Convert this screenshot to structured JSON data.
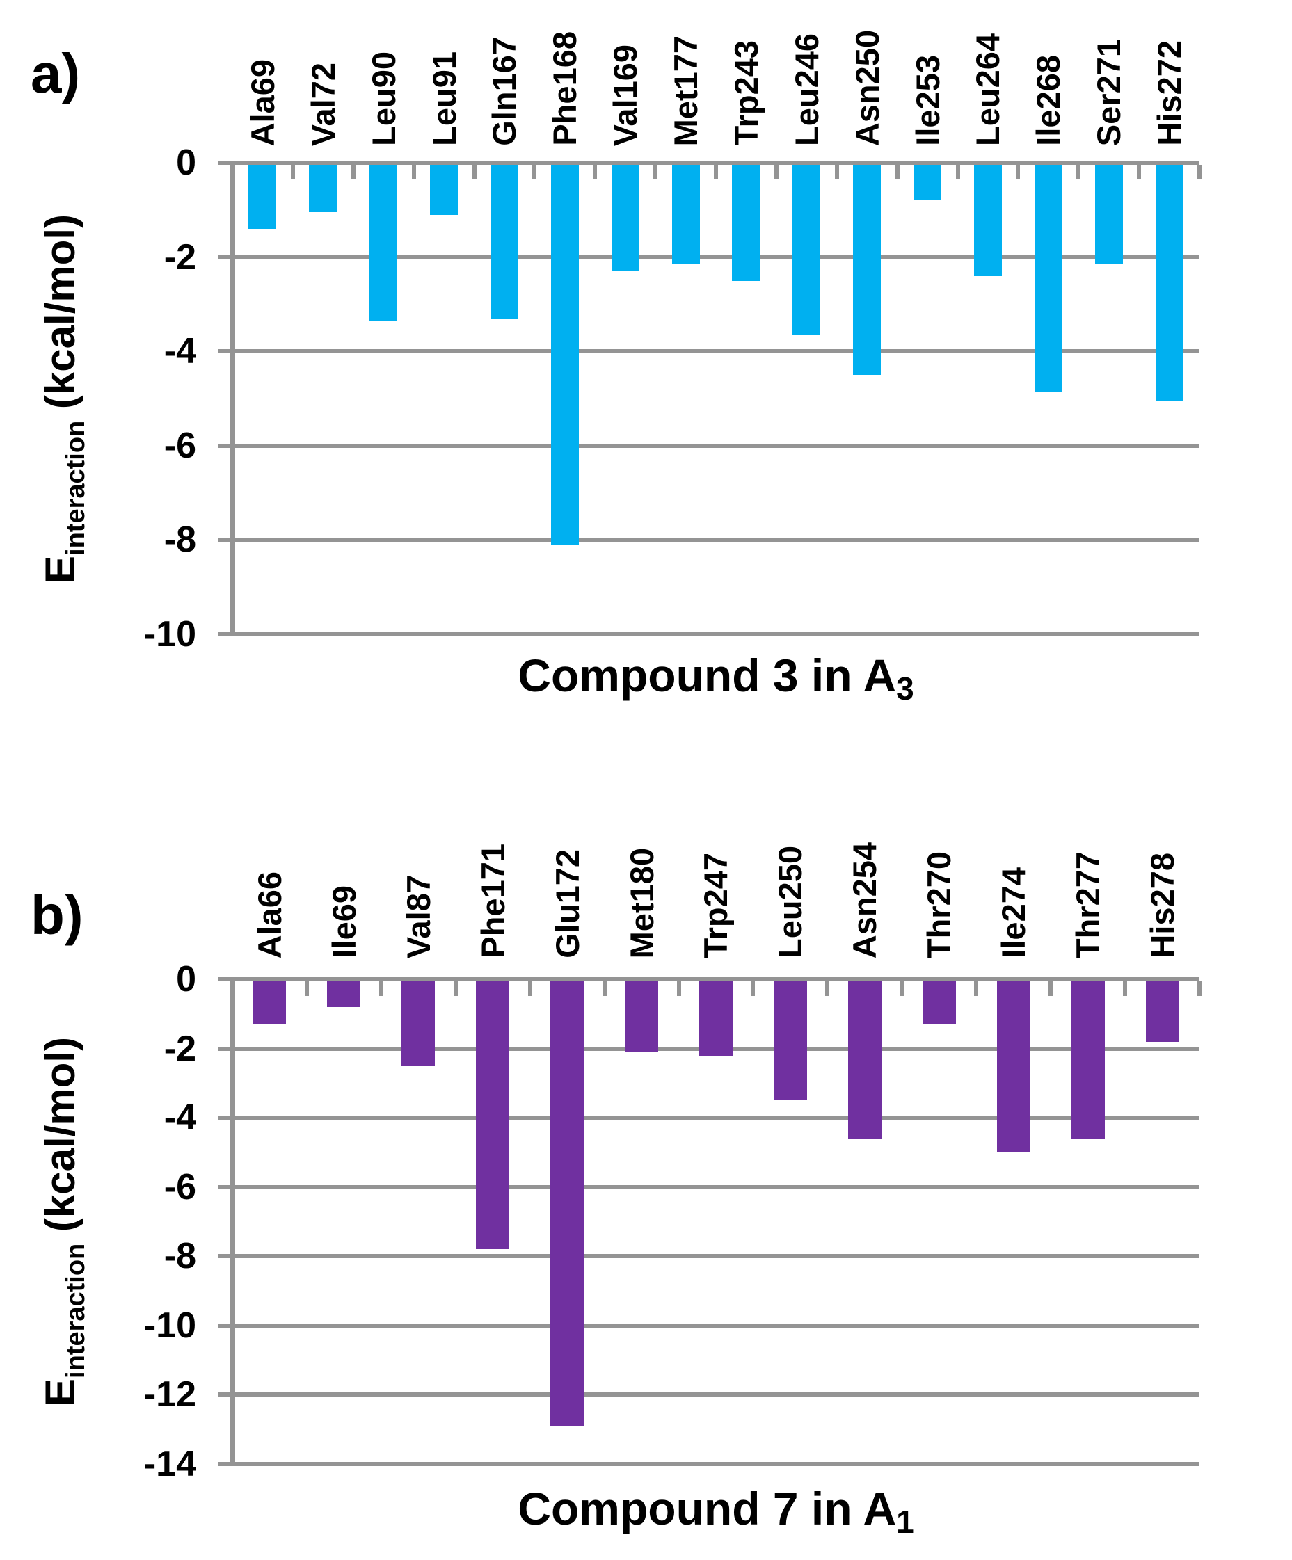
{
  "styles": {
    "background": "#FFFFFF",
    "grid_color": "#949494",
    "text_color": "#000000",
    "chart_a_bar_color": "#00B0F0",
    "chart_b_bar_color": "#7030A0"
  },
  "chart_data": [
    {
      "type": "bar",
      "panel_label": "a)",
      "title_main": "Compound 3 in A",
      "title_subscript": "3",
      "y_axis_label": {
        "main": "E",
        "subscript": "interaction",
        "units": " (kcal/mol)"
      },
      "y_axis": {
        "min": -10,
        "max": 0,
        "tick_step": 2,
        "ticks": [
          0,
          -2,
          -4,
          -6,
          -8,
          -10
        ]
      },
      "grid": true,
      "legend": false,
      "bar_color": "#00B0F0",
      "categories": [
        "Ala69",
        "Val72",
        "Leu90",
        "Leu91",
        "Gln167",
        "Phe168",
        "Val169",
        "Met177",
        "Trp243",
        "Leu246",
        "Asn250",
        "Ile253",
        "Leu264",
        "Ile268",
        "Ser271",
        "His272"
      ],
      "values": [
        -1.4,
        -1.05,
        -3.35,
        -1.1,
        -3.3,
        -8.1,
        -2.3,
        -2.15,
        -2.5,
        -3.65,
        -4.5,
        -0.8,
        -2.4,
        -4.85,
        -2.15,
        -5.05
      ]
    },
    {
      "type": "bar",
      "panel_label": "b)",
      "title_main": "Compound 7 in A",
      "title_subscript": "1",
      "y_axis_label": {
        "main": "E",
        "subscript": "interaction",
        "units": " (kcal/mol)"
      },
      "y_axis": {
        "min": -14,
        "max": 0,
        "tick_step": 2,
        "ticks": [
          0,
          -2,
          -4,
          -6,
          -8,
          -10,
          -12,
          -14
        ]
      },
      "grid": true,
      "legend": false,
      "bar_color": "#7030A0",
      "categories": [
        "Ala66",
        "Ile69",
        "Val87",
        "Phe171",
        "Glu172",
        "Met180",
        "Trp247",
        "Leu250",
        "Asn254",
        "Thr270",
        "Ile274",
        "Thr277",
        "His278"
      ],
      "values": [
        -1.3,
        -0.8,
        -2.5,
        -7.8,
        -12.9,
        -2.1,
        -2.2,
        -3.5,
        -4.6,
        -1.3,
        -5.0,
        -4.6,
        -1.8
      ]
    }
  ]
}
